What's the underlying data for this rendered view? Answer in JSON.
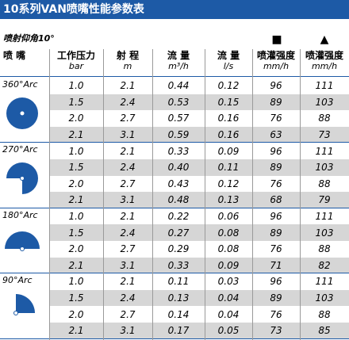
{
  "header": {
    "title": "10系列VAN喷嘴性能参数表",
    "subtitle": "喷射仰角10°"
  },
  "table": {
    "markers": [
      "■",
      "▲"
    ],
    "columns": [
      {
        "label": "喷 嘴"
      },
      {
        "label": "工作压力",
        "unit": "bar"
      },
      {
        "label": "射 程",
        "unit": "m"
      },
      {
        "label": "流 量",
        "unit": "m³/h"
      },
      {
        "label": "流 量",
        "unit": "l/s"
      },
      {
        "label": "喷灌强度",
        "unit": "mm/h"
      },
      {
        "label": "喷灌强度",
        "unit": "mm/h"
      }
    ],
    "groups": [
      {
        "label": "360°Arc",
        "rows": [
          [
            "1.0",
            "2.1",
            "0.44",
            "0.12",
            "96",
            "111"
          ],
          [
            "1.5",
            "2.4",
            "0.53",
            "0.15",
            "89",
            "103"
          ],
          [
            "2.0",
            "2.7",
            "0.57",
            "0.16",
            "76",
            "88"
          ],
          [
            "2.1",
            "3.1",
            "0.59",
            "0.16",
            "63",
            "73"
          ]
        ]
      },
      {
        "label": "270°Arc",
        "rows": [
          [
            "1.0",
            "2.1",
            "0.33",
            "0.09",
            "96",
            "111"
          ],
          [
            "1.5",
            "2.4",
            "0.40",
            "0.11",
            "89",
            "103"
          ],
          [
            "2.0",
            "2.7",
            "0.43",
            "0.12",
            "76",
            "88"
          ],
          [
            "2.1",
            "3.1",
            "0.48",
            "0.13",
            "68",
            "79"
          ]
        ]
      },
      {
        "label": "180°Arc",
        "rows": [
          [
            "1.0",
            "2.1",
            "0.22",
            "0.06",
            "96",
            "111"
          ],
          [
            "1.5",
            "2.4",
            "0.27",
            "0.08",
            "89",
            "103"
          ],
          [
            "2.0",
            "2.7",
            "0.29",
            "0.08",
            "76",
            "88"
          ],
          [
            "2.1",
            "3.1",
            "0.33",
            "0.09",
            "71",
            "82"
          ]
        ]
      },
      {
        "label": "90°Arc",
        "rows": [
          [
            "1.0",
            "2.1",
            "0.11",
            "0.03",
            "96",
            "111"
          ],
          [
            "1.5",
            "2.4",
            "0.13",
            "0.04",
            "89",
            "103"
          ],
          [
            "2.0",
            "2.7",
            "0.14",
            "0.04",
            "76",
            "88"
          ],
          [
            "2.1",
            "3.1",
            "0.17",
            "0.05",
            "73",
            "85"
          ]
        ]
      }
    ]
  }
}
